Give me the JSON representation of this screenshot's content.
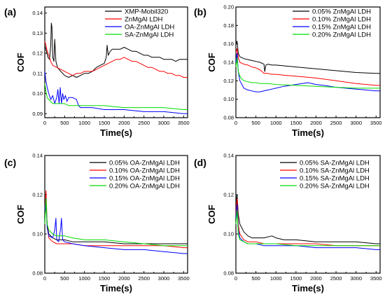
{
  "chart_data": [
    {
      "type": "line",
      "panel_label": "(a)",
      "xlabel": "Time(s)",
      "ylabel": "COF",
      "xlim": [
        0,
        3600
      ],
      "ylim": [
        0.088,
        0.143
      ],
      "xticks": [
        0,
        500,
        1000,
        1500,
        2000,
        2500,
        3000,
        3500
      ],
      "yticks": [
        0.09,
        0.1,
        0.11,
        0.12,
        0.13,
        0.14
      ],
      "ytick_labels": [
        "0.09",
        "0.10",
        "0.11",
        "0.12",
        "0.13",
        "0.14"
      ],
      "legend_position": "top-right",
      "series": [
        {
          "name": "XMP-Mobil320",
          "color": "#000000",
          "x": [
            0,
            40,
            80,
            120,
            150,
            165,
            180,
            200,
            230,
            250,
            280,
            320,
            400,
            500,
            600,
            700,
            800,
            900,
            1000,
            1100,
            1200,
            1300,
            1400,
            1500,
            1550,
            1570,
            1600,
            1650,
            1700,
            1800,
            1900,
            2000,
            2100,
            2200,
            2300,
            2400,
            2500,
            2600,
            2700,
            2800,
            2900,
            3000,
            3100,
            3200,
            3300,
            3400,
            3500,
            3600
          ],
          "y": [
            0.124,
            0.121,
            0.118,
            0.117,
            0.124,
            0.135,
            0.133,
            0.118,
            0.116,
            0.127,
            0.116,
            0.113,
            0.111,
            0.109,
            0.108,
            0.109,
            0.108,
            0.109,
            0.11,
            0.11,
            0.111,
            0.113,
            0.114,
            0.115,
            0.118,
            0.124,
            0.119,
            0.121,
            0.122,
            0.122,
            0.122,
            0.123,
            0.122,
            0.121,
            0.121,
            0.12,
            0.119,
            0.119,
            0.118,
            0.118,
            0.118,
            0.117,
            0.117,
            0.117,
            0.116,
            0.117,
            0.117,
            0.117
          ]
        },
        {
          "name": "ZnMgAl LDH",
          "color": "#ff0000",
          "x": [
            0,
            30,
            60,
            100,
            150,
            200,
            300,
            400,
            500,
            600,
            700,
            800,
            900,
            1000,
            1100,
            1200,
            1300,
            1400,
            1500,
            1600,
            1700,
            1800,
            1900,
            2000,
            2100,
            2200,
            2300,
            2400,
            2500,
            2600,
            2700,
            2800,
            2900,
            3000,
            3100,
            3200,
            3300,
            3400,
            3500,
            3600
          ],
          "y": [
            0.126,
            0.124,
            0.121,
            0.119,
            0.116,
            0.114,
            0.113,
            0.112,
            0.111,
            0.11,
            0.109,
            0.11,
            0.11,
            0.111,
            0.111,
            0.111,
            0.112,
            0.113,
            0.114,
            0.115,
            0.116,
            0.117,
            0.117,
            0.118,
            0.117,
            0.116,
            0.116,
            0.115,
            0.114,
            0.113,
            0.113,
            0.112,
            0.111,
            0.111,
            0.11,
            0.11,
            0.109,
            0.109,
            0.108,
            0.108
          ]
        },
        {
          "name": "OA-ZnMgAl LDH",
          "color": "#0000ff",
          "x": [
            0,
            30,
            60,
            100,
            150,
            200,
            250,
            300,
            330,
            360,
            390,
            420,
            450,
            480,
            520,
            560,
            600,
            700,
            800,
            850,
            900,
            1000,
            1200,
            1500,
            2000,
            2500,
            3000,
            3500,
            3600
          ],
          "y": [
            0.111,
            0.106,
            0.103,
            0.1,
            0.097,
            0.099,
            0.095,
            0.098,
            0.102,
            0.095,
            0.103,
            0.095,
            0.1,
            0.097,
            0.099,
            0.096,
            0.098,
            0.098,
            0.097,
            0.094,
            0.093,
            0.093,
            0.093,
            0.092,
            0.092,
            0.091,
            0.091,
            0.09,
            0.09
          ]
        },
        {
          "name": "SA-ZnMgAl LDH",
          "color": "#00dd00",
          "x": [
            0,
            30,
            60,
            100,
            150,
            200,
            300,
            400,
            500,
            600,
            800,
            1000,
            1200,
            1500,
            2000,
            2500,
            3000,
            3500,
            3600
          ],
          "y": [
            0.105,
            0.101,
            0.098,
            0.097,
            0.096,
            0.095,
            0.095,
            0.095,
            0.095,
            0.094,
            0.094,
            0.094,
            0.094,
            0.094,
            0.093,
            0.093,
            0.093,
            0.092,
            0.092
          ]
        }
      ]
    },
    {
      "type": "line",
      "panel_label": "(b)",
      "xlabel": "Time(s)",
      "ylabel": "COF",
      "xlim": [
        0,
        3600
      ],
      "ylim": [
        0.08,
        0.2
      ],
      "xticks": [
        0,
        500,
        1000,
        1500,
        2000,
        2500,
        3000,
        3500
      ],
      "yticks": [
        0.08,
        0.1,
        0.12,
        0.14,
        0.16,
        0.18,
        0.2
      ],
      "ytick_labels": [
        "0.08",
        "0.10",
        "0.12",
        "0.14",
        "0.16",
        "0.18",
        "0.20"
      ],
      "legend_position": "top-right",
      "series": [
        {
          "name": "0.05% ZnMgAl LDH",
          "color": "#000000",
          "x": [
            0,
            30,
            60,
            100,
            200,
            300,
            400,
            500,
            600,
            700,
            720,
            750,
            800,
            900,
            1000,
            1500,
            2000,
            2500,
            3000,
            3500,
            3600
          ],
          "y": [
            0.16,
            0.163,
            0.15,
            0.146,
            0.144,
            0.143,
            0.142,
            0.141,
            0.14,
            0.138,
            0.13,
            0.137,
            0.138,
            0.137,
            0.137,
            0.135,
            0.133,
            0.131,
            0.129,
            0.128,
            0.128
          ]
        },
        {
          "name": "0.10% ZnMgAl LDH",
          "color": "#ff0000",
          "x": [
            0,
            30,
            60,
            100,
            200,
            300,
            400,
            500,
            600,
            700,
            800,
            900,
            1000,
            1200,
            1500,
            2000,
            2500,
            3000,
            3500,
            3600
          ],
          "y": [
            0.15,
            0.155,
            0.145,
            0.14,
            0.138,
            0.137,
            0.135,
            0.134,
            0.132,
            0.128,
            0.128,
            0.127,
            0.127,
            0.126,
            0.125,
            0.123,
            0.12,
            0.117,
            0.115,
            0.115
          ]
        },
        {
          "name": "0.15% ZnMgAl LDH",
          "color": "#0000ff",
          "x": [
            0,
            30,
            60,
            100,
            200,
            300,
            400,
            500,
            600,
            700,
            800,
            900,
            1000,
            1200,
            1500,
            1800,
            2000,
            2200,
            2500,
            3000,
            3500,
            3600
          ],
          "y": [
            0.14,
            0.15,
            0.13,
            0.12,
            0.112,
            0.11,
            0.109,
            0.108,
            0.108,
            0.109,
            0.11,
            0.111,
            0.112,
            0.114,
            0.116,
            0.118,
            0.116,
            0.115,
            0.113,
            0.111,
            0.109,
            0.109
          ]
        },
        {
          "name": "0.20% ZnMgAl LDH",
          "color": "#00dd00",
          "x": [
            0,
            30,
            60,
            100,
            150,
            200,
            300,
            400,
            500,
            600,
            800,
            1000,
            1500,
            2000,
            2500,
            3000,
            3500,
            3600
          ],
          "y": [
            0.135,
            0.145,
            0.13,
            0.125,
            0.122,
            0.12,
            0.119,
            0.118,
            0.118,
            0.117,
            0.117,
            0.116,
            0.115,
            0.114,
            0.113,
            0.112,
            0.112,
            0.112
          ]
        }
      ]
    },
    {
      "type": "line",
      "panel_label": "(c)",
      "xlabel": "Time(s)",
      "ylabel": "COF",
      "xlim": [
        0,
        3600
      ],
      "ylim": [
        0.08,
        0.14
      ],
      "xticks": [
        0,
        500,
        1000,
        1500,
        2000,
        2500,
        3000,
        3500
      ],
      "yticks": [
        0.08,
        0.1,
        0.12,
        0.14
      ],
      "ytick_labels": [
        "0.08",
        "0.10",
        "0.12",
        "0.14"
      ],
      "legend_position": "top-right",
      "series": [
        {
          "name": "0.05% OA-ZnMgAl LDH",
          "color": "#000000",
          "x": [
            0,
            30,
            60,
            100,
            200,
            300,
            400,
            500,
            700,
            1000,
            1500,
            2000,
            2500,
            3000,
            3500,
            3600
          ],
          "y": [
            0.108,
            0.115,
            0.105,
            0.1,
            0.098,
            0.097,
            0.097,
            0.097,
            0.096,
            0.096,
            0.096,
            0.095,
            0.095,
            0.095,
            0.095,
            0.095
          ]
        },
        {
          "name": "0.10% OA-ZnMgAl LDH",
          "color": "#ff0000",
          "x": [
            0,
            30,
            60,
            100,
            200,
            300,
            400,
            500,
            700,
            1000,
            1500,
            2000,
            2500,
            3000,
            3500,
            3600
          ],
          "y": [
            0.112,
            0.122,
            0.105,
            0.098,
            0.096,
            0.095,
            0.095,
            0.095,
            0.095,
            0.094,
            0.094,
            0.094,
            0.094,
            0.094,
            0.093,
            0.093
          ]
        },
        {
          "name": "0.15% OA-ZnMgAl LDH",
          "color": "#0000ff",
          "x": [
            0,
            30,
            60,
            100,
            200,
            250,
            280,
            300,
            350,
            400,
            420,
            450,
            500,
            700,
            1000,
            1500,
            2000,
            2500,
            3000,
            3500,
            3600
          ],
          "y": [
            0.112,
            0.118,
            0.103,
            0.099,
            0.098,
            0.102,
            0.108,
            0.097,
            0.096,
            0.103,
            0.108,
            0.097,
            0.096,
            0.095,
            0.094,
            0.093,
            0.092,
            0.092,
            0.091,
            0.09,
            0.09
          ]
        },
        {
          "name": "0.20% OA-ZnMgAl LDH",
          "color": "#00dd00",
          "x": [
            0,
            30,
            60,
            100,
            200,
            300,
            400,
            500,
            700,
            1000,
            1500,
            2000,
            2500,
            3000,
            3500,
            3600
          ],
          "y": [
            0.105,
            0.118,
            0.105,
            0.102,
            0.1,
            0.099,
            0.099,
            0.099,
            0.098,
            0.097,
            0.097,
            0.096,
            0.095,
            0.094,
            0.094,
            0.094
          ]
        }
      ]
    },
    {
      "type": "line",
      "panel_label": "(d)",
      "xlabel": "Time(s)",
      "ylabel": "COF",
      "xlim": [
        0,
        3600
      ],
      "ylim": [
        0.08,
        0.14
      ],
      "xticks": [
        0,
        500,
        1000,
        1500,
        2000,
        2500,
        3000,
        3500
      ],
      "yticks": [
        0.08,
        0.1,
        0.12,
        0.14
      ],
      "ytick_labels": [
        "0.08",
        "0.10",
        "0.12",
        "0.14"
      ],
      "legend_position": "top-right",
      "series": [
        {
          "name": "0.05% SA-ZnMgAl LDH",
          "color": "#000000",
          "x": [
            0,
            30,
            60,
            100,
            200,
            300,
            400,
            500,
            700,
            900,
            1000,
            1200,
            1500,
            2000,
            2500,
            3000,
            3500,
            3600
          ],
          "y": [
            0.115,
            0.12,
            0.11,
            0.105,
            0.101,
            0.099,
            0.098,
            0.098,
            0.098,
            0.099,
            0.098,
            0.097,
            0.097,
            0.096,
            0.096,
            0.096,
            0.095,
            0.095
          ]
        },
        {
          "name": "0.10% SA-ZnMgAl LDH",
          "color": "#ff0000",
          "x": [
            0,
            30,
            60,
            100,
            200,
            300,
            400,
            500,
            700,
            1000,
            1500,
            2000,
            2500,
            3000,
            3500,
            3600
          ],
          "y": [
            0.11,
            0.118,
            0.105,
            0.1,
            0.097,
            0.096,
            0.096,
            0.096,
            0.095,
            0.095,
            0.095,
            0.095,
            0.094,
            0.094,
            0.094,
            0.094
          ]
        },
        {
          "name": "0.15% SA-ZnMgAl LDH",
          "color": "#0000ff",
          "x": [
            0,
            30,
            60,
            100,
            200,
            300,
            400,
            500,
            700,
            1000,
            1500,
            2000,
            2500,
            3000,
            3500,
            3600
          ],
          "y": [
            0.108,
            0.115,
            0.102,
            0.098,
            0.096,
            0.095,
            0.095,
            0.095,
            0.094,
            0.094,
            0.094,
            0.093,
            0.093,
            0.093,
            0.092,
            0.092
          ]
        },
        {
          "name": "0.20% SA-ZnMgAl LDH",
          "color": "#00dd00",
          "x": [
            0,
            30,
            60,
            100,
            200,
            300,
            400,
            500,
            700,
            1000,
            1500,
            2000,
            2500,
            3000,
            3500,
            3600
          ],
          "y": [
            0.105,
            0.112,
            0.1,
            0.097,
            0.096,
            0.095,
            0.095,
            0.095,
            0.095,
            0.095,
            0.094,
            0.094,
            0.094,
            0.094,
            0.094,
            0.094
          ]
        }
      ]
    }
  ]
}
